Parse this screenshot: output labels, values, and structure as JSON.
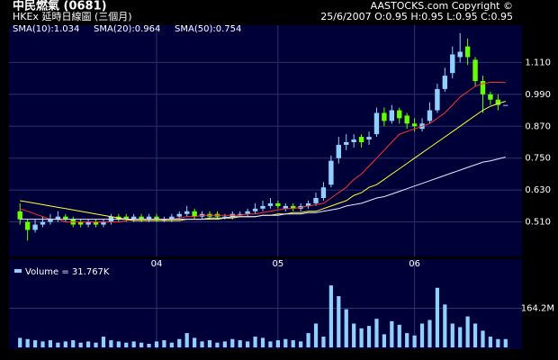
{
  "chart_data": {
    "type": "candlestick",
    "title": "中民燃氣 (0681)",
    "subtitle": "HKEx 延時日線圖 (三個月)",
    "source": "AASTOCKS.com Copyright ©",
    "quote": "25/6/2007 O:0.95 H:0.95 L:0.95 C:0.95",
    "up_color": "#8fd0ff",
    "down_color": "#66ff00",
    "grid": true,
    "categories": [
      null,
      null,
      null,
      null,
      null,
      null,
      null,
      null,
      null,
      null,
      null,
      null,
      null,
      null,
      null,
      null,
      null,
      null,
      "04",
      null,
      null,
      null,
      null,
      null,
      null,
      null,
      null,
      null,
      null,
      null,
      null,
      null,
      null,
      null,
      "05",
      null,
      null,
      null,
      null,
      null,
      null,
      null,
      null,
      null,
      null,
      null,
      null,
      null,
      null,
      null,
      null,
      null,
      "06",
      null,
      null,
      null,
      null,
      null,
      null,
      null,
      null,
      null,
      null,
      null,
      null
    ],
    "open": [
      0.55,
      0.51,
      0.48,
      0.5,
      0.51,
      0.52,
      0.53,
      0.52,
      0.51,
      0.5,
      0.51,
      0.5,
      0.51,
      0.53,
      0.53,
      0.52,
      0.53,
      0.52,
      0.53,
      0.52,
      0.52,
      0.53,
      0.54,
      0.55,
      0.53,
      0.54,
      0.54,
      0.53,
      0.53,
      0.54,
      0.54,
      0.55,
      0.56,
      0.57,
      0.58,
      0.56,
      0.57,
      0.56,
      0.57,
      0.58,
      0.6,
      0.65,
      0.75,
      0.8,
      0.81,
      0.83,
      0.82,
      0.84,
      0.92,
      0.89,
      0.93,
      0.91,
      0.88,
      0.86,
      0.89,
      0.93,
      1.01,
      1.07,
      1.13,
      1.17,
      1.12,
      1.04,
      0.99,
      0.97,
      0.95
    ],
    "high": [
      0.58,
      0.52,
      0.52,
      0.53,
      0.54,
      0.55,
      0.54,
      0.53,
      0.52,
      0.52,
      0.52,
      0.52,
      0.54,
      0.54,
      0.54,
      0.54,
      0.54,
      0.54,
      0.54,
      0.53,
      0.54,
      0.55,
      0.57,
      0.56,
      0.55,
      0.55,
      0.55,
      0.54,
      0.55,
      0.55,
      0.56,
      0.58,
      0.59,
      0.6,
      0.59,
      0.58,
      0.58,
      0.58,
      0.59,
      0.62,
      0.66,
      0.76,
      0.83,
      0.84,
      0.84,
      0.84,
      0.85,
      0.94,
      0.94,
      0.95,
      0.94,
      0.92,
      0.9,
      0.9,
      0.96,
      1.03,
      1.09,
      1.17,
      1.22,
      1.2,
      1.13,
      1.06,
      1.0,
      0.99,
      0.95
    ],
    "low": [
      0.5,
      0.44,
      0.47,
      0.49,
      0.5,
      0.51,
      0.51,
      0.49,
      0.49,
      0.49,
      0.49,
      0.49,
      0.5,
      0.51,
      0.51,
      0.51,
      0.51,
      0.51,
      0.51,
      0.51,
      0.51,
      0.52,
      0.53,
      0.52,
      0.52,
      0.52,
      0.52,
      0.52,
      0.52,
      0.53,
      0.53,
      0.54,
      0.55,
      0.56,
      0.56,
      0.55,
      0.55,
      0.55,
      0.56,
      0.57,
      0.59,
      0.64,
      0.73,
      0.78,
      0.79,
      0.79,
      0.8,
      0.83,
      0.87,
      0.88,
      0.88,
      0.86,
      0.85,
      0.85,
      0.88,
      0.92,
      1.0,
      1.05,
      1.11,
      1.1,
      1.02,
      0.92,
      0.95,
      0.93,
      0.95
    ],
    "close": [
      0.52,
      0.48,
      0.5,
      0.51,
      0.52,
      0.53,
      0.52,
      0.5,
      0.5,
      0.51,
      0.5,
      0.51,
      0.53,
      0.52,
      0.52,
      0.53,
      0.52,
      0.53,
      0.52,
      0.52,
      0.53,
      0.54,
      0.55,
      0.53,
      0.54,
      0.53,
      0.53,
      0.53,
      0.54,
      0.54,
      0.55,
      0.56,
      0.57,
      0.58,
      0.57,
      0.57,
      0.56,
      0.57,
      0.58,
      0.6,
      0.64,
      0.74,
      0.8,
      0.81,
      0.82,
      0.81,
      0.83,
      0.92,
      0.89,
      0.93,
      0.9,
      0.88,
      0.87,
      0.88,
      0.93,
      1.01,
      1.06,
      1.14,
      1.15,
      1.13,
      1.04,
      0.99,
      0.97,
      0.95,
      0.95
    ],
    "series": [
      {
        "name": "SMA(10):1.034",
        "color": "#ff3030",
        "values": [
          0.56,
          0.55,
          0.54,
          0.53,
          0.52,
          0.52,
          0.51,
          0.51,
          0.51,
          0.51,
          0.51,
          0.51,
          0.51,
          0.51,
          0.515,
          0.52,
          0.52,
          0.52,
          0.52,
          0.52,
          0.52,
          0.525,
          0.53,
          0.53,
          0.535,
          0.535,
          0.535,
          0.535,
          0.535,
          0.535,
          0.54,
          0.54,
          0.545,
          0.55,
          0.555,
          0.56,
          0.56,
          0.565,
          0.57,
          0.575,
          0.58,
          0.6,
          0.62,
          0.64,
          0.67,
          0.69,
          0.72,
          0.75,
          0.78,
          0.81,
          0.84,
          0.85,
          0.86,
          0.87,
          0.88,
          0.9,
          0.92,
          0.95,
          0.98,
          1.0,
          1.02,
          1.03,
          1.035,
          1.035,
          1.034
        ]
      },
      {
        "name": "SMA(20):0.964",
        "color": "#ffff33",
        "values": [
          0.59,
          0.585,
          0.58,
          0.575,
          0.57,
          0.565,
          0.56,
          0.555,
          0.55,
          0.545,
          0.54,
          0.535,
          0.53,
          0.525,
          0.52,
          0.515,
          0.515,
          0.515,
          0.515,
          0.515,
          0.515,
          0.515,
          0.52,
          0.52,
          0.52,
          0.52,
          0.52,
          0.525,
          0.525,
          0.53,
          0.53,
          0.53,
          0.535,
          0.535,
          0.54,
          0.54,
          0.545,
          0.545,
          0.55,
          0.55,
          0.56,
          0.57,
          0.58,
          0.59,
          0.61,
          0.62,
          0.64,
          0.65,
          0.67,
          0.69,
          0.71,
          0.73,
          0.75,
          0.77,
          0.79,
          0.81,
          0.83,
          0.85,
          0.87,
          0.89,
          0.91,
          0.93,
          0.945,
          0.955,
          0.964
        ]
      },
      {
        "name": "SMA(50):0.754",
        "color": "#e8e8ff",
        "values": [
          0.52,
          0.52,
          0.52,
          0.52,
          0.52,
          0.52,
          0.52,
          0.52,
          0.52,
          0.52,
          0.52,
          0.52,
          0.52,
          0.52,
          0.52,
          0.52,
          0.52,
          0.52,
          0.52,
          0.52,
          0.52,
          0.52,
          0.52,
          0.52,
          0.52,
          0.525,
          0.525,
          0.525,
          0.53,
          0.53,
          0.53,
          0.53,
          0.535,
          0.535,
          0.535,
          0.54,
          0.54,
          0.54,
          0.545,
          0.545,
          0.55,
          0.555,
          0.56,
          0.57,
          0.575,
          0.58,
          0.59,
          0.6,
          0.605,
          0.615,
          0.625,
          0.635,
          0.645,
          0.655,
          0.665,
          0.675,
          0.685,
          0.695,
          0.705,
          0.715,
          0.725,
          0.735,
          0.74,
          0.747,
          0.754
        ]
      }
    ],
    "ylim": [
      0.38,
      1.25
    ],
    "yticks": [
      {
        "value": 0.51,
        "label": "0.510"
      },
      {
        "value": 0.63,
        "label": "0.630"
      },
      {
        "value": 0.75,
        "label": "0.750"
      },
      {
        "value": 0.87,
        "label": "0.870"
      },
      {
        "value": 0.99,
        "label": "0.990"
      },
      {
        "value": 1.11,
        "label": "1.110"
      }
    ],
    "volume": {
      "name": "Volume = 31.767K",
      "color": "#8fd0ff",
      "values": [
        40,
        35,
        30,
        25,
        30,
        20,
        25,
        30,
        20,
        25,
        20,
        45,
        30,
        25,
        20,
        25,
        20,
        15,
        25,
        30,
        20,
        35,
        60,
        40,
        25,
        30,
        20,
        25,
        35,
        30,
        25,
        45,
        40,
        25,
        30,
        35,
        30,
        25,
        60,
        100,
        45,
        260,
        215,
        160,
        100,
        80,
        90,
        120,
        55,
        110,
        95,
        60,
        50,
        100,
        115,
        250,
        180,
        100,
        85,
        130,
        100,
        70,
        45,
        35,
        35
      ],
      "ylim": [
        0,
        370
      ],
      "yticks": [
        {
          "value": 164.2,
          "label": "164.2M"
        }
      ]
    }
  }
}
